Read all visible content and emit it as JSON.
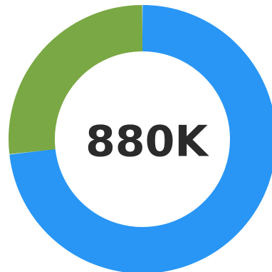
{
  "chart_data": {
    "type": "pie",
    "variant": "donut",
    "center_label": "880K",
    "slices": [
      {
        "value": 73.2,
        "color": "#2996f5"
      },
      {
        "value": 26.8,
        "color": "#7aa844"
      }
    ],
    "start": "top",
    "direction": "clockwise",
    "legend": "none"
  }
}
